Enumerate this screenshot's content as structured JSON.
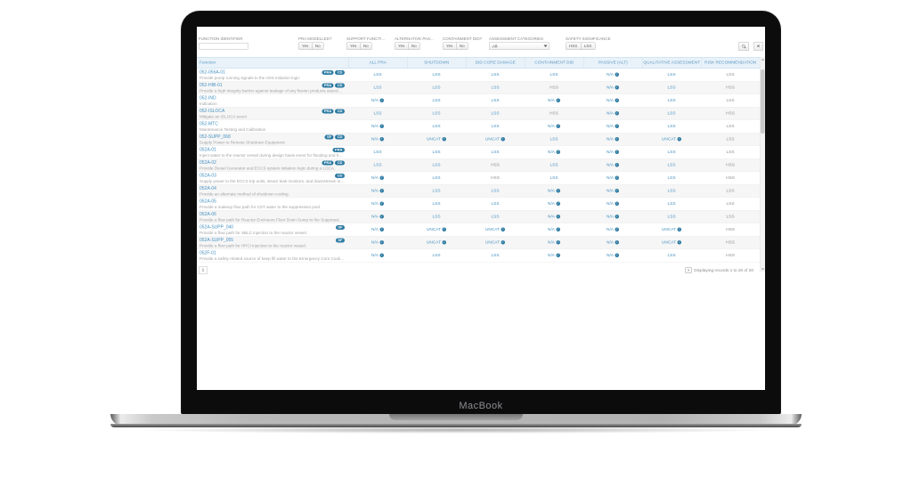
{
  "laptop": {
    "label": "MacBook"
  },
  "filters": {
    "function_identifier": {
      "label": "FUNCTION IDENTIFIER",
      "value": "",
      "placeholder": ""
    },
    "pra_modelled": {
      "label": "PRA MODELLED?",
      "options": [
        "Yes",
        "No"
      ]
    },
    "support_function": {
      "label": "SUPPORT FUNCTI...",
      "options": [
        "Yes",
        "No"
      ]
    },
    "alternative_passive": {
      "label": "ALTERNATIVE PAS...",
      "options": [
        "Yes",
        "No"
      ]
    },
    "containment_did": {
      "label": "CONTAINMENT DID?",
      "options": [
        "Yes",
        "No"
      ]
    },
    "assessment_categories": {
      "label": "ASSESSMENT CATEGORIES",
      "value": "-All-"
    },
    "safety_significance": {
      "label": "SAFETY SIGNIFICANCE",
      "options": [
        "HSS",
        "LSS"
      ]
    }
  },
  "table": {
    "columns": [
      "Function",
      "ALL PRA",
      "SHUTDOWN",
      "DID CORE DAMAGE",
      "CONTAINMENT DID",
      "PASSIVE (ALT)",
      "QUALITATIVE ASSESSMENT",
      "RISK RECOMMENDATION"
    ],
    "rows": [
      {
        "id": "052-056A-01",
        "badges": [
          "PRA",
          "CD"
        ],
        "desc": "Provide pump running signals to the ADS initiation logic",
        "values": [
          {
            "t": "LSS"
          },
          {
            "t": "LSS"
          },
          {
            "t": "LSS"
          },
          {
            "t": "LSS"
          },
          {
            "t": "N/A",
            "info": true
          },
          {
            "t": "LSS"
          },
          {
            "t": "LSS"
          }
        ]
      },
      {
        "id": "052-HIB-01",
        "badges": [
          "PRA",
          "CD"
        ],
        "desc": "Provide a high integrity barrier against leakage of any fission products associated with the fuel",
        "values": [
          {
            "t": "LSS"
          },
          {
            "t": "LSS"
          },
          {
            "t": "LSS"
          },
          {
            "t": "HSS"
          },
          {
            "t": "N/A",
            "info": true
          },
          {
            "t": "LSS"
          },
          {
            "t": "HSS"
          }
        ]
      },
      {
        "id": "052-IND",
        "badges": [],
        "desc": "Indication",
        "values": [
          {
            "t": "N/A",
            "info": true
          },
          {
            "t": "LSS"
          },
          {
            "t": "LSS"
          },
          {
            "t": "N/A",
            "info": true
          },
          {
            "t": "N/A",
            "info": true
          },
          {
            "t": "LSS"
          },
          {
            "t": "LSS"
          }
        ]
      },
      {
        "id": "052-ISLOCA",
        "badges": [
          "PRA",
          "CD"
        ],
        "desc": "Mitigate an ISLOCA event",
        "values": [
          {
            "t": "LSS"
          },
          {
            "t": "LSS"
          },
          {
            "t": "LSS"
          },
          {
            "t": "HSS"
          },
          {
            "t": "N/A",
            "info": true
          },
          {
            "t": "LSS"
          },
          {
            "t": "HSS"
          }
        ]
      },
      {
        "id": "052-MTC",
        "badges": [],
        "desc": "Maintenance Testing and Calibration",
        "values": [
          {
            "t": "N/A",
            "info": true
          },
          {
            "t": "LSS"
          },
          {
            "t": "LSS"
          },
          {
            "t": "N/A",
            "info": true
          },
          {
            "t": "N/A",
            "info": true
          },
          {
            "t": "LSS"
          },
          {
            "t": "LSS"
          }
        ]
      },
      {
        "id": "052-SUPP_068",
        "badges": [
          "SF",
          "CD"
        ],
        "desc": "Supply Power to Remote Shutdown Equipment",
        "values": [
          {
            "t": "N/A",
            "info": true
          },
          {
            "t": "UNCAT",
            "info": true
          },
          {
            "t": "UNCAT",
            "info": true
          },
          {
            "t": "LSS"
          },
          {
            "t": "N/A",
            "info": true
          },
          {
            "t": "UNCAT",
            "info": true
          },
          {
            "t": "LSS"
          }
        ]
      },
      {
        "id": "052A-01",
        "badges": [
          "PRA"
        ],
        "desc": "Inject water to the reactor vessel during design basis event for flooding and heat removal",
        "values": [
          {
            "t": "LSS"
          },
          {
            "t": "LSS"
          },
          {
            "t": "LSS"
          },
          {
            "t": "N/A",
            "info": true
          },
          {
            "t": "N/A",
            "info": true
          },
          {
            "t": "LSS"
          },
          {
            "t": "LSS"
          }
        ]
      },
      {
        "id": "052A-02",
        "badges": [
          "PRA",
          "CD"
        ],
        "desc": "Provide Diesel Generator and ECCS system initiation logic during a LOCA.",
        "values": [
          {
            "t": "LSS"
          },
          {
            "t": "LSS"
          },
          {
            "t": "HSS"
          },
          {
            "t": "LSS"
          },
          {
            "t": "N/A",
            "info": true
          },
          {
            "t": "LSS"
          },
          {
            "t": "HSS"
          }
        ]
      },
      {
        "id": "052A-03",
        "badges": [
          "CD"
        ],
        "desc": "Supply power to the ECCS trip units, steam leak monitors, and downstream instrumentation",
        "values": [
          {
            "t": "N/A",
            "info": true
          },
          {
            "t": "LSS"
          },
          {
            "t": "HSS"
          },
          {
            "t": "LSS"
          },
          {
            "t": "N/A",
            "info": true
          },
          {
            "t": "LSS"
          },
          {
            "t": "HSS"
          }
        ]
      },
      {
        "id": "052A-04",
        "badges": [],
        "desc": "Provide an alternate method of shutdown cooling.",
        "values": [
          {
            "t": "N/A",
            "info": true
          },
          {
            "t": "LSS"
          },
          {
            "t": "LSS"
          },
          {
            "t": "N/A",
            "info": true
          },
          {
            "t": "N/A",
            "info": true
          },
          {
            "t": "LSS"
          },
          {
            "t": "LSS"
          }
        ]
      },
      {
        "id": "052A-05",
        "badges": [],
        "desc": "Provide a makeup flow path for CST water to the suppression pool.",
        "values": [
          {
            "t": "N/A",
            "info": true
          },
          {
            "t": "LSS"
          },
          {
            "t": "LSS"
          },
          {
            "t": "N/A",
            "info": true
          },
          {
            "t": "N/A",
            "info": true
          },
          {
            "t": "LSS"
          },
          {
            "t": "LSS"
          }
        ]
      },
      {
        "id": "052A-06",
        "badges": [],
        "desc": "Provide a flow path for Reactor Enclosure Floor Drain Sump to the Suppression pool.",
        "values": [
          {
            "t": "N/A",
            "info": true
          },
          {
            "t": "LSS"
          },
          {
            "t": "LSS"
          },
          {
            "t": "N/A",
            "info": true
          },
          {
            "t": "N/A",
            "info": true
          },
          {
            "t": "LSS"
          },
          {
            "t": "LSS"
          }
        ]
      },
      {
        "id": "052A-SUPP_040",
        "badges": [
          "SF"
        ],
        "desc": "Provide a flow path for SBLC injection to the reactor vessel.",
        "values": [
          {
            "t": "N/A",
            "info": true
          },
          {
            "t": "UNCAT",
            "info": true
          },
          {
            "t": "UNCAT",
            "info": true
          },
          {
            "t": "N/A",
            "info": true
          },
          {
            "t": "N/A",
            "info": true
          },
          {
            "t": "UNCAT",
            "info": true
          },
          {
            "t": "HSS"
          }
        ]
      },
      {
        "id": "052A-SUPP_055",
        "badges": [
          "SF"
        ],
        "desc": "Provide a flow path for HPCI injection to the reactor vessel.",
        "values": [
          {
            "t": "N/A",
            "info": true
          },
          {
            "t": "UNCAT",
            "info": true
          },
          {
            "t": "UNCAT",
            "info": true
          },
          {
            "t": "N/A",
            "info": true
          },
          {
            "t": "N/A",
            "info": true
          },
          {
            "t": "UNCAT",
            "info": true
          },
          {
            "t": "HSS"
          }
        ]
      },
      {
        "id": "052F-01",
        "badges": [],
        "desc": "Provide a safety related source of keep fill water to the Emergency Core Cooling Systems",
        "values": [
          {
            "t": "N/A",
            "info": true
          },
          {
            "t": "LSS"
          },
          {
            "t": "LSS"
          },
          {
            "t": "N/A",
            "info": true
          },
          {
            "t": "N/A",
            "info": true
          },
          {
            "t": "LSS"
          },
          {
            "t": "HSS"
          }
        ]
      }
    ]
  },
  "pagination": {
    "page": "1",
    "status": "Displaying records 1 to 20 of 20"
  },
  "colors": {
    "accent": "#4792c1",
    "badge": "#2e7ba3",
    "header_bg": "#e9f2f9",
    "header_text": "#5b97c4"
  }
}
